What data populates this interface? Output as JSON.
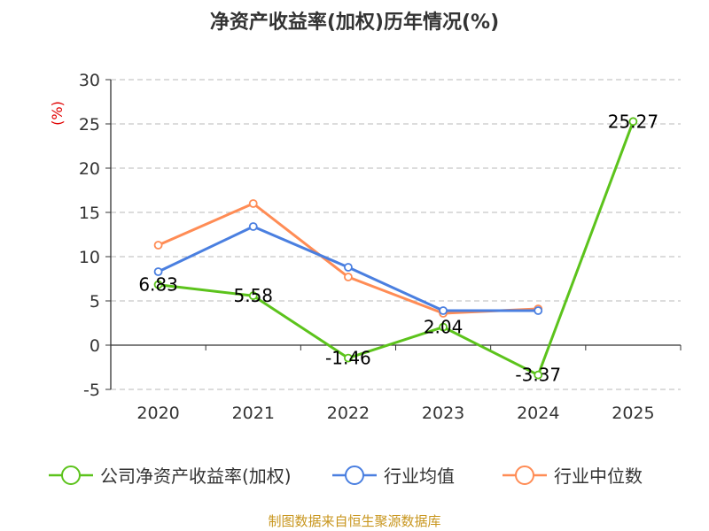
{
  "chart_data": {
    "type": "line",
    "title": "净资产收益率(加权)历年情况(%)",
    "ylabel": "(%)",
    "xlabel": "",
    "categories": [
      "2020",
      "2021",
      "2022",
      "2023",
      "2024",
      "2025"
    ],
    "ylim": [
      -5,
      30
    ],
    "yticks": [
      -5,
      0,
      5,
      10,
      15,
      20,
      25,
      30
    ],
    "grid": true,
    "legend_position": "bottom",
    "series": [
      {
        "name": "公司净资产收益率(加权)",
        "color": "#5cc31c",
        "values": [
          6.83,
          5.58,
          -1.46,
          2.04,
          -3.37,
          25.27
        ],
        "labels": [
          "6.83",
          "5.58",
          "-1.46",
          "2.04",
          "-3.37",
          "25.27"
        ]
      },
      {
        "name": "行业均值",
        "color": "#4a7fe0",
        "values": [
          8.3,
          13.4,
          8.8,
          3.9,
          3.9,
          null
        ]
      },
      {
        "name": "行业中位数",
        "color": "#ff8c55",
        "values": [
          11.3,
          16.0,
          7.7,
          3.6,
          4.1,
          null
        ]
      }
    ],
    "source": "制图数据来自恒生聚源数据库"
  }
}
